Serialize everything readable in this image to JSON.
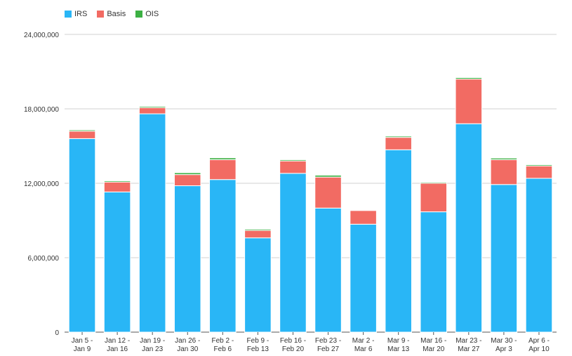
{
  "legend": [
    {
      "name": "IRS",
      "color": "#29b6f6"
    },
    {
      "name": "Basis",
      "color": "#f26b63"
    },
    {
      "name": "OIS",
      "color": "#3cb043"
    }
  ],
  "chart_data": {
    "type": "bar",
    "stacked": true,
    "legend_position": "top-left",
    "grid": true,
    "ylim": [
      0,
      24000000
    ],
    "yticks": [
      0,
      6000000,
      12000000,
      18000000,
      24000000
    ],
    "ytick_labels": [
      "0",
      "6,000,000",
      "12,000,000",
      "18,000,000",
      "24,000,000"
    ],
    "categories": [
      [
        "Jan 5 -",
        "Jan 9"
      ],
      [
        "Jan 12 -",
        "Jan 16"
      ],
      [
        "Jan 19 -",
        "Jan 23"
      ],
      [
        "Jan 26 -",
        "Jan 30"
      ],
      [
        "Feb 2 -",
        "Feb 6"
      ],
      [
        "Feb 9 -",
        "Feb 13"
      ],
      [
        "Feb 16 -",
        "Feb 20"
      ],
      [
        "Feb 23 -",
        "Feb 27"
      ],
      [
        "Mar 2 -",
        "Mar 6"
      ],
      [
        "Mar 9 -",
        "Mar 13"
      ],
      [
        "Mar 16 -",
        "Mar 20"
      ],
      [
        "Mar 23 -",
        "Mar 27"
      ],
      [
        "Mar 30 -",
        "Apr 3"
      ],
      [
        "Apr 6 -",
        "Apr 10"
      ]
    ],
    "series": [
      {
        "name": "IRS",
        "color": "#29b6f6",
        "values": [
          15600000,
          11300000,
          17600000,
          11800000,
          12300000,
          7600000,
          12800000,
          10000000,
          8700000,
          14700000,
          9700000,
          16800000,
          11900000,
          12400000
        ]
      },
      {
        "name": "Basis",
        "color": "#f26b63",
        "values": [
          600000,
          800000,
          500000,
          900000,
          1600000,
          600000,
          1000000,
          2500000,
          1100000,
          1000000,
          2300000,
          3600000,
          2000000,
          1000000
        ]
      },
      {
        "name": "OIS",
        "color": "#3cb043",
        "values": [
          100000,
          100000,
          100000,
          150000,
          150000,
          100000,
          100000,
          150000,
          0,
          100000,
          80000,
          120000,
          130000,
          100000
        ]
      }
    ]
  }
}
